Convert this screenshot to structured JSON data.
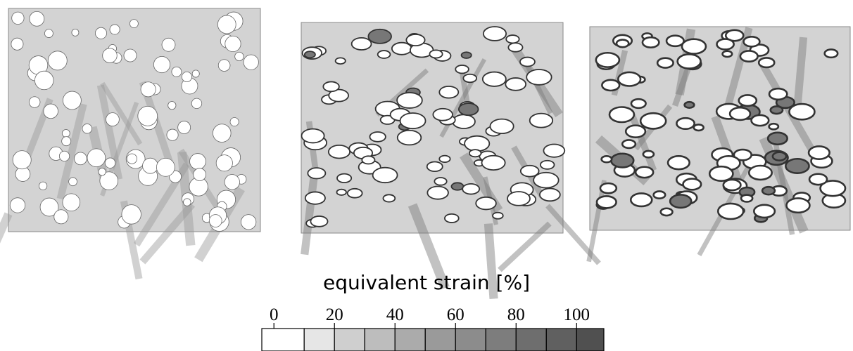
{
  "colorbar": {
    "label": "equivalent strain [%]",
    "ticks": [
      0,
      20,
      40,
      60,
      80,
      100
    ],
    "bounds": [
      -4,
      10,
      20,
      30,
      40,
      50,
      60,
      70,
      80,
      90,
      100,
      109
    ],
    "colors": [
      "#ffffff",
      "#e6e6e6",
      "#cfcfcf",
      "#bdbdbd",
      "#ababab",
      "#9a9a9a",
      "#8c8c8c",
      "#7d7d7d",
      "#6e6e6e",
      "#606060",
      "#505050"
    ]
  }
}
